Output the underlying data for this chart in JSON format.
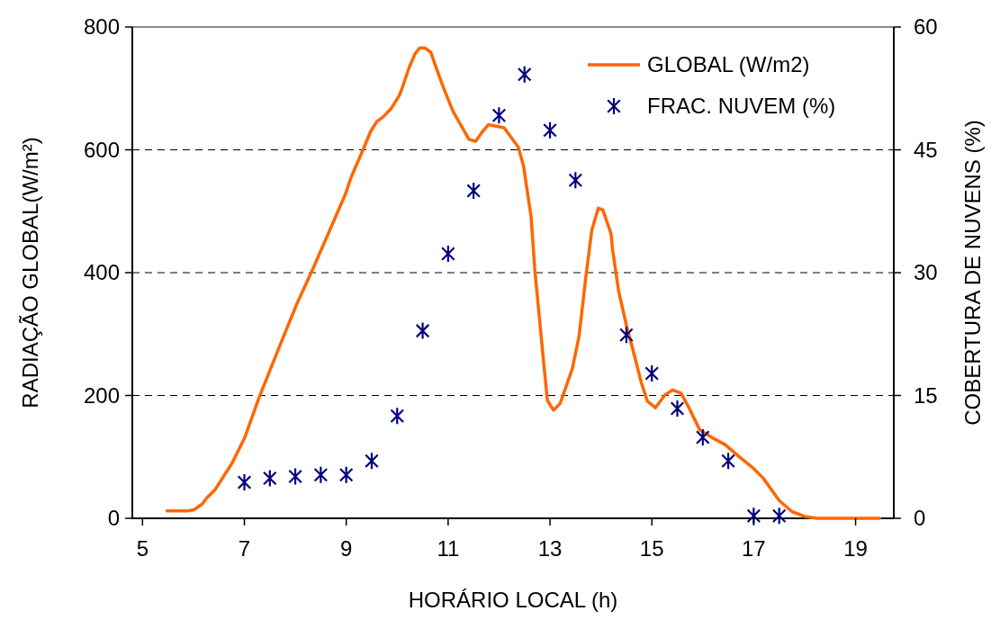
{
  "chart_data": {
    "type": "line",
    "xlabel": "HORÁRIO LOCAL (h)",
    "ylabel": "RADIAÇÃO GLOBAL(W/m²)",
    "y2label": "COBERTURA DE NUVENS (%)",
    "xlim": [
      4.8,
      19.75
    ],
    "xticks": [
      5,
      7,
      9,
      11,
      13,
      15,
      17,
      19
    ],
    "ylim": [
      0,
      800
    ],
    "yticks": [
      0,
      200,
      400,
      600,
      800
    ],
    "y2lim": [
      0,
      60
    ],
    "y2ticks": [
      0,
      15,
      30,
      45,
      60
    ],
    "grid": "y",
    "legend": "top right",
    "series": [
      {
        "name": "GLOBAL  (W/m2)",
        "color": "#ff6600",
        "marker": "none",
        "line_style": "solid",
        "x": [
          5.48,
          5.88,
          6.01,
          6.17,
          6.26,
          6.42,
          6.76,
          7.01,
          7.1,
          7.29,
          7.73,
          8.04,
          8.35,
          8.98,
          9.1,
          9.35,
          9.48,
          9.6,
          9.73,
          9.88,
          10.04,
          10.1,
          10.23,
          10.35,
          10.44,
          10.54,
          10.66,
          10.76,
          10.91,
          11.1,
          11.41,
          11.54,
          11.66,
          11.79,
          12.1,
          12.38,
          12.48,
          12.63,
          12.7,
          12.82,
          12.88,
          12.95,
          13.07,
          13.2,
          13.44,
          13.57,
          13.7,
          13.82,
          13.95,
          14.04,
          14.2,
          14.23,
          14.35,
          14.51,
          14.63,
          14.79,
          14.91,
          15.07,
          15.26,
          15.41,
          15.57,
          15.73,
          15.94,
          16.19,
          16.44,
          16.69,
          17,
          17.19,
          17.5,
          17.75,
          18,
          18.25,
          19.47
        ],
        "values": [
          12,
          12,
          14,
          23,
          33,
          46,
          90,
          132,
          153,
          197,
          288,
          351,
          407,
          527,
          556,
          604,
          630,
          646,
          654,
          667,
          688,
          701,
          733,
          756,
          766,
          766,
          759,
          735,
          701,
          662,
          617,
          614,
          628,
          641,
          636,
          604,
          574,
          490,
          407,
          302,
          250,
          192,
          176,
          187,
          244,
          296,
          390,
          469,
          505,
          502,
          463,
          437,
          369,
          311,
          274,
          222,
          191,
          180,
          201,
          209,
          204,
          180,
          144,
          131,
          120,
          102,
          81,
          65,
          29,
          11,
          3,
          0,
          0
        ]
      },
      {
        "name": "FRAC. NUVEM (%)",
        "type": "scatter",
        "axis": "y2",
        "color": "#000080",
        "marker": "cross",
        "x": [
          7,
          7.5,
          8,
          8.5,
          9,
          9.5,
          10,
          10.5,
          11,
          11.5,
          12,
          12.5,
          13,
          13.5,
          14.5,
          15,
          15.5,
          16,
          16.5,
          17,
          17.5
        ],
        "values": [
          4.4,
          4.9,
          5.1,
          5.3,
          5.3,
          7,
          12.5,
          22.9,
          32.3,
          40,
          49.2,
          54.2,
          47.4,
          41.3,
          22.4,
          17.7,
          13.4,
          9.9,
          7,
          0.3,
          0.3
        ]
      }
    ]
  }
}
